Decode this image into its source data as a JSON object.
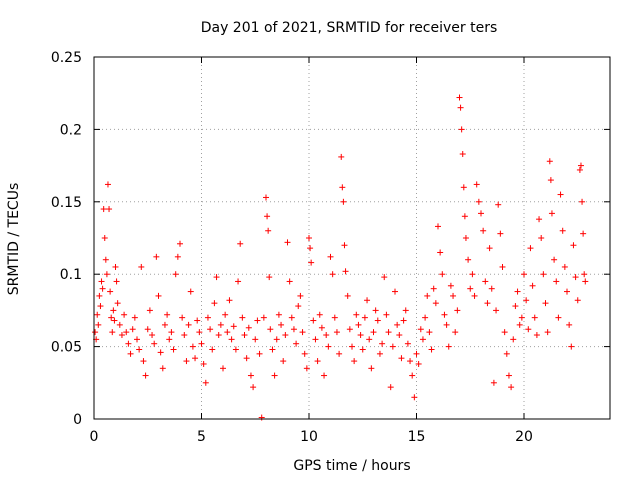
{
  "chart_data": {
    "type": "scatter",
    "title": "Day 201 of 2021, SRMTID for receiver ters",
    "xlabel": "GPS time / hours",
    "ylabel": "SRMTID / TECUs",
    "xlim": [
      0,
      24
    ],
    "ylim": [
      0,
      0.25
    ],
    "xticks": [
      0,
      5,
      10,
      15,
      20
    ],
    "xtick_labels": [
      "0",
      "5",
      "10",
      "15",
      "20"
    ],
    "yticks": [
      0,
      0.05,
      0.1,
      0.15,
      0.2,
      0.25
    ],
    "ytick_labels": [
      "0",
      "0.05",
      "0.1",
      "0.15",
      "0.2",
      "0.25"
    ],
    "grid": true,
    "marker": "+",
    "color": "#ff0000",
    "series": [
      {
        "name": "SRMTID",
        "points": [
          [
            0.05,
            0.06
          ],
          [
            0.1,
            0.055
          ],
          [
            0.15,
            0.072
          ],
          [
            0.2,
            0.065
          ],
          [
            0.25,
            0.085
          ],
          [
            0.3,
            0.078
          ],
          [
            0.35,
            0.095
          ],
          [
            0.4,
            0.09
          ],
          [
            0.45,
            0.145
          ],
          [
            0.5,
            0.125
          ],
          [
            0.55,
            0.11
          ],
          [
            0.6,
            0.1
          ],
          [
            0.65,
            0.162
          ],
          [
            0.7,
            0.145
          ],
          [
            0.75,
            0.088
          ],
          [
            0.8,
            0.07
          ],
          [
            0.85,
            0.06
          ],
          [
            0.9,
            0.075
          ],
          [
            0.95,
            0.068
          ],
          [
            1.0,
            0.105
          ],
          [
            1.05,
            0.095
          ],
          [
            1.1,
            0.08
          ],
          [
            1.2,
            0.065
          ],
          [
            1.3,
            0.058
          ],
          [
            1.4,
            0.072
          ],
          [
            1.5,
            0.06
          ],
          [
            1.6,
            0.052
          ],
          [
            1.7,
            0.045
          ],
          [
            1.8,
            0.062
          ],
          [
            1.9,
            0.07
          ],
          [
            2.0,
            0.055
          ],
          [
            2.1,
            0.048
          ],
          [
            2.2,
            0.105
          ],
          [
            2.3,
            0.04
          ],
          [
            2.4,
            0.03
          ],
          [
            2.5,
            0.062
          ],
          [
            2.6,
            0.075
          ],
          [
            2.7,
            0.058
          ],
          [
            2.8,
            0.052
          ],
          [
            2.9,
            0.112
          ],
          [
            3.0,
            0.085
          ],
          [
            3.1,
            0.046
          ],
          [
            3.2,
            0.035
          ],
          [
            3.3,
            0.065
          ],
          [
            3.4,
            0.072
          ],
          [
            3.5,
            0.055
          ],
          [
            3.6,
            0.06
          ],
          [
            3.7,
            0.048
          ],
          [
            3.8,
            0.1
          ],
          [
            3.9,
            0.112
          ],
          [
            4.0,
            0.121
          ],
          [
            4.1,
            0.07
          ],
          [
            4.2,
            0.058
          ],
          [
            4.3,
            0.04
          ],
          [
            4.4,
            0.065
          ],
          [
            4.5,
            0.088
          ],
          [
            4.6,
            0.05
          ],
          [
            4.7,
            0.042
          ],
          [
            4.8,
            0.068
          ],
          [
            4.9,
            0.06
          ],
          [
            5.0,
            0.052
          ],
          [
            5.1,
            0.038
          ],
          [
            5.2,
            0.025
          ],
          [
            5.3,
            0.07
          ],
          [
            5.4,
            0.062
          ],
          [
            5.5,
            0.048
          ],
          [
            5.6,
            0.08
          ],
          [
            5.7,
            0.098
          ],
          [
            5.8,
            0.058
          ],
          [
            5.9,
            0.065
          ],
          [
            6.0,
            0.035
          ],
          [
            6.1,
            0.072
          ],
          [
            6.2,
            0.06
          ],
          [
            6.3,
            0.082
          ],
          [
            6.4,
            0.055
          ],
          [
            6.5,
            0.064
          ],
          [
            6.6,
            0.048
          ],
          [
            6.7,
            0.095
          ],
          [
            6.8,
            0.121
          ],
          [
            6.9,
            0.07
          ],
          [
            7.0,
            0.058
          ],
          [
            7.1,
            0.042
          ],
          [
            7.2,
            0.063
          ],
          [
            7.3,
            0.03
          ],
          [
            7.4,
            0.022
          ],
          [
            7.5,
            0.055
          ],
          [
            7.6,
            0.068
          ],
          [
            7.7,
            0.045
          ],
          [
            7.8,
            0.001
          ],
          [
            7.9,
            0.07
          ],
          [
            8.0,
            0.153
          ],
          [
            8.05,
            0.14
          ],
          [
            8.1,
            0.13
          ],
          [
            8.15,
            0.098
          ],
          [
            8.2,
            0.062
          ],
          [
            8.3,
            0.048
          ],
          [
            8.4,
            0.03
          ],
          [
            8.5,
            0.055
          ],
          [
            8.6,
            0.072
          ],
          [
            8.7,
            0.065
          ],
          [
            8.8,
            0.04
          ],
          [
            8.9,
            0.058
          ],
          [
            9.0,
            0.122
          ],
          [
            9.1,
            0.095
          ],
          [
            9.2,
            0.07
          ],
          [
            9.3,
            0.062
          ],
          [
            9.4,
            0.052
          ],
          [
            9.5,
            0.078
          ],
          [
            9.6,
            0.085
          ],
          [
            9.7,
            0.06
          ],
          [
            9.8,
            0.045
          ],
          [
            9.9,
            0.035
          ],
          [
            10.0,
            0.125
          ],
          [
            10.05,
            0.118
          ],
          [
            10.1,
            0.108
          ],
          [
            10.2,
            0.068
          ],
          [
            10.3,
            0.055
          ],
          [
            10.4,
            0.04
          ],
          [
            10.5,
            0.072
          ],
          [
            10.6,
            0.063
          ],
          [
            10.7,
            0.03
          ],
          [
            10.8,
            0.058
          ],
          [
            10.9,
            0.05
          ],
          [
            11.0,
            0.112
          ],
          [
            11.1,
            0.1
          ],
          [
            11.2,
            0.07
          ],
          [
            11.3,
            0.06
          ],
          [
            11.4,
            0.045
          ],
          [
            11.5,
            0.181
          ],
          [
            11.55,
            0.16
          ],
          [
            11.6,
            0.15
          ],
          [
            11.65,
            0.12
          ],
          [
            11.7,
            0.102
          ],
          [
            11.8,
            0.085
          ],
          [
            11.9,
            0.062
          ],
          [
            12.0,
            0.05
          ],
          [
            12.1,
            0.04
          ],
          [
            12.2,
            0.072
          ],
          [
            12.3,
            0.065
          ],
          [
            12.4,
            0.058
          ],
          [
            12.5,
            0.048
          ],
          [
            12.6,
            0.07
          ],
          [
            12.7,
            0.082
          ],
          [
            12.8,
            0.055
          ],
          [
            12.9,
            0.035
          ],
          [
            13.0,
            0.06
          ],
          [
            13.1,
            0.075
          ],
          [
            13.2,
            0.068
          ],
          [
            13.3,
            0.045
          ],
          [
            13.4,
            0.052
          ],
          [
            13.5,
            0.098
          ],
          [
            13.6,
            0.072
          ],
          [
            13.7,
            0.06
          ],
          [
            13.8,
            0.022
          ],
          [
            13.9,
            0.05
          ],
          [
            14.0,
            0.088
          ],
          [
            14.1,
            0.065
          ],
          [
            14.2,
            0.058
          ],
          [
            14.3,
            0.042
          ],
          [
            14.4,
            0.068
          ],
          [
            14.5,
            0.075
          ],
          [
            14.6,
            0.052
          ],
          [
            14.7,
            0.04
          ],
          [
            14.8,
            0.03
          ],
          [
            14.9,
            0.015
          ],
          [
            15.0,
            0.045
          ],
          [
            15.1,
            0.038
          ],
          [
            15.2,
            0.062
          ],
          [
            15.3,
            0.055
          ],
          [
            15.4,
            0.07
          ],
          [
            15.5,
            0.085
          ],
          [
            15.6,
            0.06
          ],
          [
            15.7,
            0.048
          ],
          [
            15.8,
            0.09
          ],
          [
            15.9,
            0.08
          ],
          [
            16.0,
            0.133
          ],
          [
            16.1,
            0.115
          ],
          [
            16.2,
            0.1
          ],
          [
            16.3,
            0.072
          ],
          [
            16.4,
            0.065
          ],
          [
            16.5,
            0.05
          ],
          [
            16.6,
            0.092
          ],
          [
            16.7,
            0.085
          ],
          [
            16.8,
            0.06
          ],
          [
            16.9,
            0.075
          ],
          [
            17.0,
            0.222
          ],
          [
            17.05,
            0.215
          ],
          [
            17.1,
            0.2
          ],
          [
            17.15,
            0.183
          ],
          [
            17.2,
            0.16
          ],
          [
            17.25,
            0.14
          ],
          [
            17.3,
            0.125
          ],
          [
            17.4,
            0.11
          ],
          [
            17.5,
            0.09
          ],
          [
            17.6,
            0.1
          ],
          [
            17.7,
            0.085
          ],
          [
            17.8,
            0.162
          ],
          [
            17.9,
            0.15
          ],
          [
            18.0,
            0.142
          ],
          [
            18.1,
            0.13
          ],
          [
            18.2,
            0.095
          ],
          [
            18.3,
            0.08
          ],
          [
            18.4,
            0.118
          ],
          [
            18.5,
            0.09
          ],
          [
            18.6,
            0.025
          ],
          [
            18.7,
            0.075
          ],
          [
            18.8,
            0.148
          ],
          [
            18.9,
            0.128
          ],
          [
            19.0,
            0.105
          ],
          [
            19.1,
            0.06
          ],
          [
            19.2,
            0.045
          ],
          [
            19.3,
            0.03
          ],
          [
            19.4,
            0.022
          ],
          [
            19.5,
            0.055
          ],
          [
            19.6,
            0.078
          ],
          [
            19.7,
            0.088
          ],
          [
            19.8,
            0.065
          ],
          [
            19.9,
            0.07
          ],
          [
            20.0,
            0.1
          ],
          [
            20.1,
            0.082
          ],
          [
            20.2,
            0.062
          ],
          [
            20.3,
            0.118
          ],
          [
            20.4,
            0.092
          ],
          [
            20.5,
            0.07
          ],
          [
            20.6,
            0.058
          ],
          [
            20.7,
            0.138
          ],
          [
            20.8,
            0.125
          ],
          [
            20.9,
            0.1
          ],
          [
            21.0,
            0.08
          ],
          [
            21.1,
            0.06
          ],
          [
            21.2,
            0.178
          ],
          [
            21.25,
            0.165
          ],
          [
            21.3,
            0.142
          ],
          [
            21.4,
            0.11
          ],
          [
            21.5,
            0.095
          ],
          [
            21.6,
            0.07
          ],
          [
            21.7,
            0.155
          ],
          [
            21.8,
            0.13
          ],
          [
            21.9,
            0.105
          ],
          [
            22.0,
            0.088
          ],
          [
            22.1,
            0.065
          ],
          [
            22.2,
            0.05
          ],
          [
            22.3,
            0.12
          ],
          [
            22.4,
            0.098
          ],
          [
            22.5,
            0.082
          ],
          [
            22.6,
            0.172
          ],
          [
            22.65,
            0.175
          ],
          [
            22.7,
            0.15
          ],
          [
            22.75,
            0.128
          ],
          [
            22.8,
            0.1
          ],
          [
            22.85,
            0.095
          ]
        ]
      }
    ]
  }
}
